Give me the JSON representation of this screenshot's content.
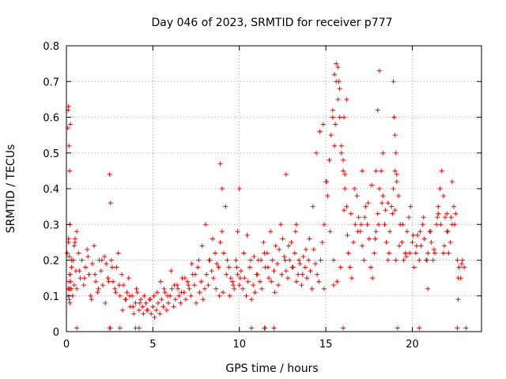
{
  "chart_data": {
    "type": "scatter",
    "title": "Day 046 of 2023, SRMTID for receiver p777",
    "xlabel": "GPS time / hours",
    "ylabel": "SRMTID / TECUs",
    "xlim": [
      0,
      24
    ],
    "ylim": [
      0,
      0.8
    ],
    "grid": true,
    "marker": "+",
    "color": "#ff0000",
    "x_ticks": [
      0,
      5,
      10,
      15,
      20
    ],
    "x_tick_labels": [
      "0",
      "5",
      "10",
      "15",
      "20"
    ],
    "y_ticks": [
      0,
      0.1,
      0.2,
      0.3,
      0.4,
      0.5,
      0.6,
      0.7,
      0.8
    ],
    "y_tick_labels": [
      "0",
      "0.1",
      "0.2",
      "0.3",
      "0.4",
      "0.5",
      "0.6",
      "0.7",
      "0.8"
    ],
    "series": [
      {
        "name": "SRMTID",
        "x": [
          0.05,
          0.08,
          0.1,
          0.12,
          0.15,
          0.18,
          0.2,
          0.22,
          0.25,
          0.28,
          0.3,
          0.35,
          0.4,
          0.45,
          0.5,
          0.55,
          0.6,
          0.7,
          0.8,
          0.9,
          1.0,
          1.1,
          1.2,
          1.3,
          1.4,
          1.5,
          1.6,
          1.7,
          1.8,
          1.9,
          2.0,
          2.1,
          2.2,
          2.3,
          2.4,
          2.5,
          2.55,
          2.6,
          2.7,
          2.8,
          2.9,
          3.0,
          3.1,
          3.2,
          3.3,
          3.4,
          3.5,
          3.6,
          3.7,
          3.8,
          3.9,
          4.0,
          4.1,
          4.2,
          4.3,
          4.4,
          4.5,
          4.6,
          4.7,
          4.8,
          4.9,
          5.0,
          5.1,
          5.2,
          5.3,
          5.4,
          5.5,
          5.6,
          5.7,
          5.8,
          5.9,
          6.0,
          6.1,
          6.2,
          6.3,
          6.4,
          6.5,
          6.6,
          6.7,
          6.8,
          6.9,
          7.0,
          7.1,
          7.2,
          7.3,
          7.4,
          7.5,
          7.6,
          7.7,
          7.8,
          7.9,
          8.0,
          8.1,
          8.2,
          8.3,
          8.4,
          8.5,
          8.6,
          8.7,
          8.8,
          8.9,
          9.0,
          9.1,
          9.2,
          9.3,
          9.4,
          9.5,
          9.6,
          9.7,
          9.8,
          9.9,
          10.0,
          10.1,
          10.2,
          10.3,
          10.4,
          10.5,
          10.6,
          10.7,
          10.8,
          10.9,
          11.0,
          11.1,
          11.2,
          11.3,
          11.4,
          11.5,
          11.6,
          11.7,
          11.8,
          11.9,
          12.0,
          12.1,
          12.2,
          12.3,
          12.4,
          12.5,
          12.6,
          12.7,
          12.8,
          12.9,
          13.0,
          13.1,
          13.2,
          13.3,
          13.4,
          13.5,
          13.6,
          13.7,
          13.8,
          13.9,
          14.0,
          14.1,
          14.2,
          14.3,
          14.4,
          14.5,
          14.6,
          14.7,
          14.8,
          14.9,
          15.0,
          15.1,
          15.2,
          15.3,
          15.4,
          15.5,
          15.6,
          15.7,
          15.8,
          15.9,
          16.0,
          16.1,
          16.2,
          16.3,
          16.4,
          16.5,
          16.6,
          16.7,
          16.8,
          16.9,
          17.0,
          17.1,
          17.2,
          17.3,
          17.4,
          17.5,
          17.6,
          17.7,
          17.8,
          17.9,
          18.0,
          18.1,
          18.2,
          18.3,
          18.4,
          18.5,
          18.6,
          18.7,
          18.8,
          18.9,
          19.0,
          19.1,
          19.2,
          19.3,
          19.4,
          19.5,
          19.6,
          19.7,
          19.8,
          19.9,
          20.0,
          20.1,
          20.2,
          20.3,
          20.4,
          20.5,
          20.6,
          20.7,
          20.8,
          20.9,
          21.0,
          21.1,
          21.2,
          21.3,
          21.4,
          21.5,
          21.6,
          21.7,
          21.8,
          21.9,
          22.0,
          22.1,
          22.2,
          22.3,
          22.4,
          22.5,
          22.6,
          22.7,
          22.8,
          22.9,
          0.12,
          0.14,
          0.16,
          0.2,
          0.3,
          0.45,
          0.6,
          0.75,
          1.05,
          1.25,
          1.45,
          1.65,
          1.85,
          2.05,
          2.25,
          2.45,
          2.65,
          2.85,
          3.05,
          3.25,
          3.45,
          3.65,
          3.85,
          4.05,
          4.25,
          4.45,
          4.65,
          4.85,
          5.05,
          5.25,
          5.45,
          5.65,
          5.85,
          6.05,
          6.25,
          6.45,
          6.65,
          6.85,
          7.05,
          7.25,
          7.45,
          7.65,
          7.85,
          8.05,
          8.25,
          8.45,
          8.65,
          8.85,
          9.05,
          9.25,
          9.45,
          9.65,
          9.85,
          10.05,
          10.25,
          10.45,
          10.65,
          10.85,
          11.05,
          11.25,
          11.45,
          11.65,
          11.85,
          12.05,
          12.25,
          12.45,
          12.65,
          12.85,
          13.05,
          13.25,
          13.45,
          13.65,
          13.85,
          14.05,
          14.25,
          14.45,
          14.65,
          14.85,
          15.05,
          15.25,
          15.45,
          15.65,
          15.85,
          16.05,
          16.25,
          16.45,
          16.65,
          16.85,
          17.05,
          17.25,
          17.45,
          17.65,
          17.85,
          18.05,
          18.25,
          18.45,
          18.65,
          18.85,
          19.05,
          19.25,
          19.45,
          19.65,
          19.85,
          20.05,
          20.25,
          20.45,
          20.65,
          20.85,
          21.05,
          21.25,
          21.45,
          21.65,
          21.85,
          22.05,
          22.25,
          22.45,
          22.65,
          22.85,
          0.1,
          0.11,
          0.13,
          0.15,
          0.17,
          0.19,
          0.21,
          0.23,
          15.4,
          15.5,
          15.6,
          15.7,
          15.75,
          15.8,
          15.9,
          16.0,
          16.1,
          16.2,
          18.0,
          18.1,
          18.9,
          18.95,
          19.0,
          19.05,
          19.1,
          19.15,
          0.6,
          2.5,
          2.55,
          3.1,
          4.0,
          4.2,
          10.7,
          11.45,
          11.5,
          12.0,
          16.0,
          20.4,
          22.6,
          22.65,
          0.5,
          15.45,
          15.55,
          16.05,
          19.0,
          12.7,
          8.9,
          9.0,
          21.8,
          22.0,
          22.3,
          18.3,
          17.9,
          9.9,
          10.0,
          13.3,
          14.9,
          17.1,
          18.6,
          20.9,
          21.5,
          23.0,
          23.1
        ],
        "y": [
          0.22,
          0.57,
          0.62,
          0.63,
          0.52,
          0.45,
          0.3,
          0.16,
          0.14,
          0.12,
          0.18,
          0.1,
          0.2,
          0.13,
          0.25,
          0.17,
          0.12,
          0.22,
          0.15,
          0.2,
          0.13,
          0.18,
          0.23,
          0.16,
          0.1,
          0.19,
          0.24,
          0.14,
          0.11,
          0.2,
          0.17,
          0.13,
          0.21,
          0.19,
          0.15,
          0.44,
          0.36,
          0.2,
          0.14,
          0.12,
          0.18,
          0.22,
          0.1,
          0.16,
          0.13,
          0.09,
          0.11,
          0.15,
          0.07,
          0.1,
          0.05,
          0.08,
          0.11,
          0.06,
          0.09,
          0.07,
          0.1,
          0.08,
          0.06,
          0.09,
          0.05,
          0.07,
          0.04,
          0.06,
          0.08,
          0.05,
          0.09,
          0.07,
          0.11,
          0.06,
          0.08,
          0.1,
          0.12,
          0.07,
          0.09,
          0.13,
          0.1,
          0.08,
          0.15,
          0.11,
          0.09,
          0.14,
          0.12,
          0.1,
          0.16,
          0.13,
          0.08,
          0.18,
          0.11,
          0.14,
          0.09,
          0.12,
          0.16,
          0.13,
          0.2,
          0.17,
          0.15,
          0.22,
          0.19,
          0.18,
          0.25,
          0.28,
          0.22,
          0.35,
          0.2,
          0.18,
          0.15,
          0.14,
          0.12,
          0.2,
          0.16,
          0.13,
          0.17,
          0.12,
          0.15,
          0.1,
          0.14,
          0.18,
          0.09,
          0.13,
          0.11,
          0.16,
          0.2,
          0.14,
          0.12,
          0.25,
          0.18,
          0.22,
          0.15,
          0.28,
          0.2,
          0.17,
          0.24,
          0.19,
          0.23,
          0.3,
          0.26,
          0.21,
          0.17,
          0.15,
          0.2,
          0.25,
          0.18,
          0.22,
          0.14,
          0.16,
          0.19,
          0.13,
          0.21,
          0.18,
          0.15,
          0.2,
          0.17,
          0.12,
          0.23,
          0.19,
          0.16,
          0.14,
          0.2,
          0.25,
          0.3,
          0.42,
          0.38,
          0.48,
          0.55,
          0.6,
          0.52,
          0.7,
          0.74,
          0.68,
          0.5,
          0.45,
          0.4,
          0.35,
          0.22,
          0.18,
          0.15,
          0.25,
          0.3,
          0.38,
          0.32,
          0.28,
          0.24,
          0.2,
          0.35,
          0.3,
          0.26,
          0.18,
          0.15,
          0.22,
          0.28,
          0.33,
          0.4,
          0.45,
          0.38,
          0.3,
          0.25,
          0.2,
          0.28,
          0.35,
          0.4,
          0.45,
          0.42,
          0.38,
          0.3,
          0.25,
          0.2,
          0.22,
          0.28,
          0.32,
          0.35,
          0.25,
          0.18,
          0.22,
          0.27,
          0.2,
          0.24,
          0.3,
          0.26,
          0.2,
          0.22,
          0.28,
          0.25,
          0.2,
          0.22,
          0.3,
          0.35,
          0.4,
          0.45,
          0.38,
          0.32,
          0.28,
          0.22,
          0.25,
          0.3,
          0.35,
          0.33,
          0.2,
          0.18,
          0.15,
          0.2,
          0.26,
          0.12,
          0.09,
          0.08,
          0.2,
          0.24,
          0.28,
          0.17,
          0.15,
          0.21,
          0.09,
          0.16,
          0.12,
          0.2,
          0.08,
          0.14,
          0.18,
          0.11,
          0.13,
          0.06,
          0.09,
          0.1,
          0.07,
          0.12,
          0.08,
          0.05,
          0.06,
          0.09,
          0.1,
          0.11,
          0.14,
          0.12,
          0.1,
          0.17,
          0.13,
          0.12,
          0.11,
          0.15,
          0.13,
          0.19,
          0.16,
          0.2,
          0.24,
          0.3,
          0.2,
          0.26,
          0.12,
          0.1,
          0.11,
          0.16,
          0.1,
          0.13,
          0.18,
          0.15,
          0.22,
          0.27,
          0.2,
          0.21,
          0.16,
          0.2,
          0.22,
          0.18,
          0.14,
          0.11,
          0.13,
          0.16,
          0.2,
          0.24,
          0.18,
          0.28,
          0.2,
          0.16,
          0.23,
          0.26,
          0.35,
          0.5,
          0.56,
          0.58,
          0.42,
          0.28,
          0.2,
          0.14,
          0.18,
          0.34,
          0.27,
          0.33,
          0.4,
          0.28,
          0.3,
          0.32,
          0.36,
          0.41,
          0.26,
          0.3,
          0.36,
          0.34,
          0.22,
          0.33,
          0.2,
          0.24,
          0.3,
          0.21,
          0.22,
          0.27,
          0.24,
          0.28,
          0.32,
          0.2,
          0.28,
          0.23,
          0.32,
          0.3,
          0.24,
          0.28,
          0.32,
          0.3,
          0.15,
          0.19,
          0.12,
          0.25,
          0.1,
          0.14,
          0.21,
          0.16,
          0.12,
          0.58,
          0.62,
          0.72,
          0.75,
          0.65,
          0.7,
          0.6,
          0.52,
          0.48,
          0.44,
          0.65,
          0.62,
          0.73,
          0.7,
          0.6,
          0.55,
          0.5,
          0.44,
          0.01,
          0.01,
          0.01,
          0.01,
          0.01,
          0.01,
          0.01,
          0.01,
          0.01,
          0.01,
          0.01,
          0.01,
          0.01,
          0.01,
          0.09,
          0.26,
          0.13,
          0.58,
          0.6,
          0.34,
          0.44,
          0.47,
          0.4,
          0.22,
          0.33,
          0.42,
          0.5,
          0.45,
          0.28,
          0.4,
          0.3,
          0.12,
          0.45,
          0.36,
          0.12,
          0.33,
          0.18,
          0.01
        ]
      }
    ]
  }
}
